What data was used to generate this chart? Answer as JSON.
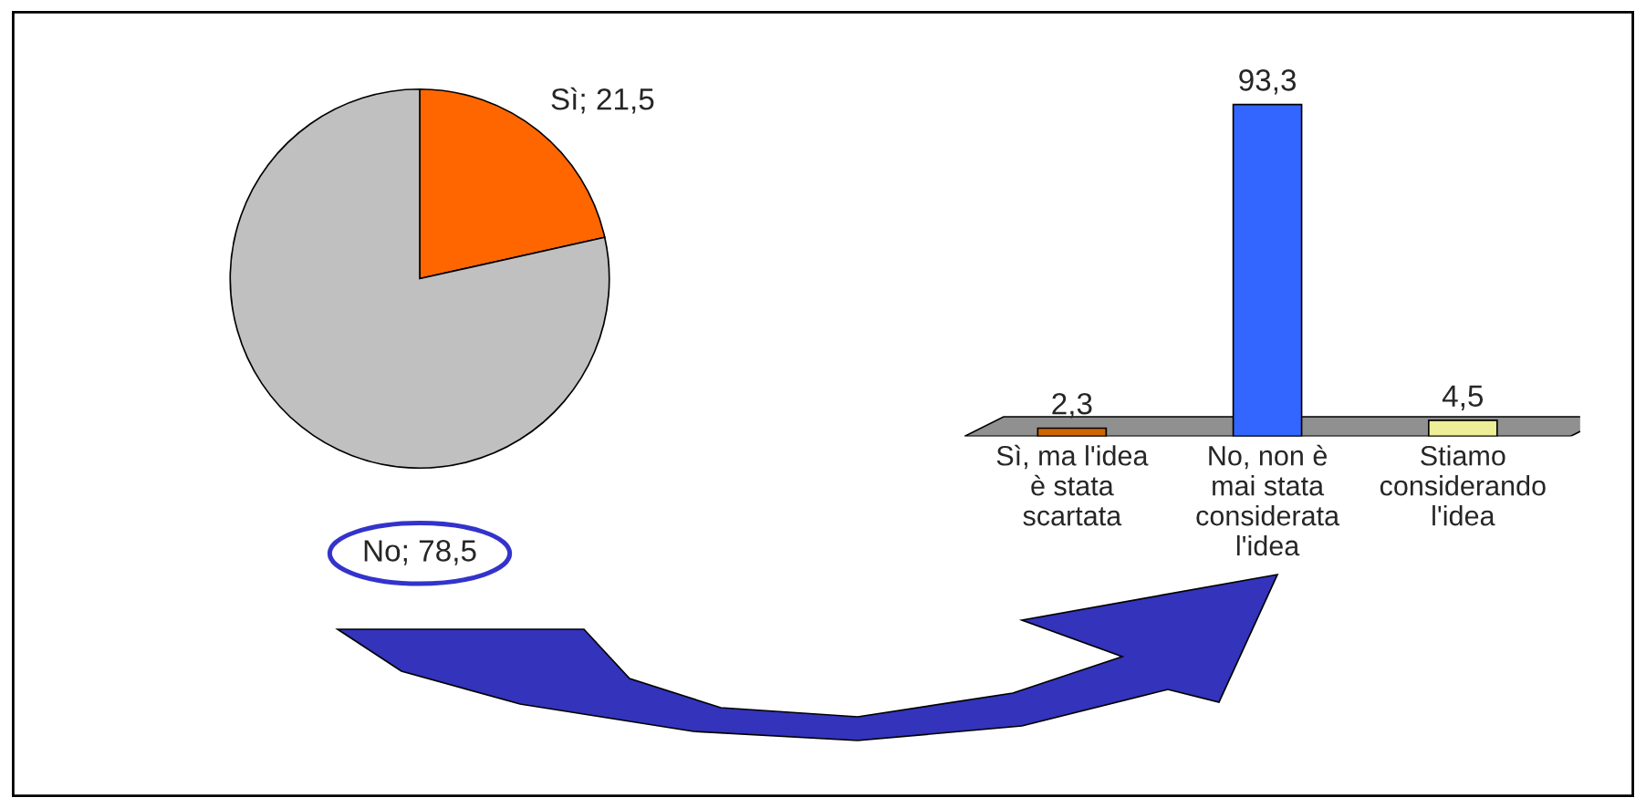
{
  "chart_data": [
    {
      "type": "pie",
      "categories": [
        "Sì",
        "No"
      ],
      "values": [
        21.5,
        78.5
      ],
      "colors": [
        "#ff6600",
        "#c0c0c0"
      ],
      "value_labels": [
        "21,5",
        "78,5"
      ]
    },
    {
      "type": "bar",
      "categories": [
        "Sì, ma l'idea\nè stata\nscartata",
        "No, non è\nmai stata\nconsiderata\nl'idea",
        "Stiamo\nconsiderando\nl'idea"
      ],
      "values": [
        2.3,
        93.3,
        4.5
      ],
      "colors": [
        "#cc6600",
        "#3366ff",
        "#eeee99"
      ],
      "value_labels": [
        "2,3",
        "93,3",
        "4,5"
      ]
    }
  ]
}
